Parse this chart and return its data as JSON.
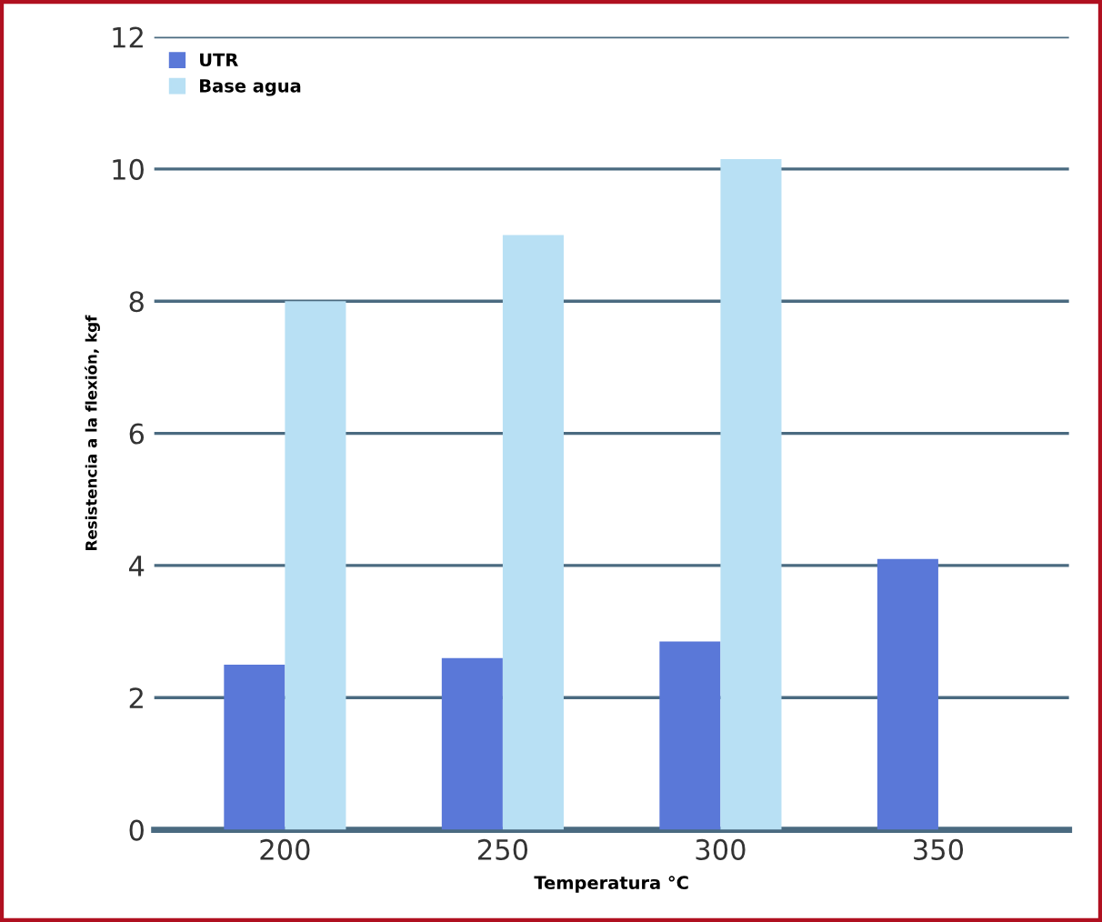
{
  "chart_data": {
    "type": "bar",
    "xlabel": "Temperatura °C",
    "ylabel": "Resistencia a la flexión, kgf",
    "categories": [
      "200",
      "250",
      "300",
      "350"
    ],
    "series": [
      {
        "name": "UTR",
        "color": "#5a78d8",
        "values": [
          2.5,
          2.6,
          2.85,
          4.1
        ]
      },
      {
        "name": "Base agua",
        "color": "#b8e0f4",
        "values": [
          8.0,
          9.0,
          10.15,
          null
        ]
      }
    ],
    "ylim": [
      0,
      12
    ],
    "yticks": [
      0,
      2,
      4,
      6,
      8,
      10,
      12
    ],
    "grid": "y",
    "legend": "top left"
  }
}
